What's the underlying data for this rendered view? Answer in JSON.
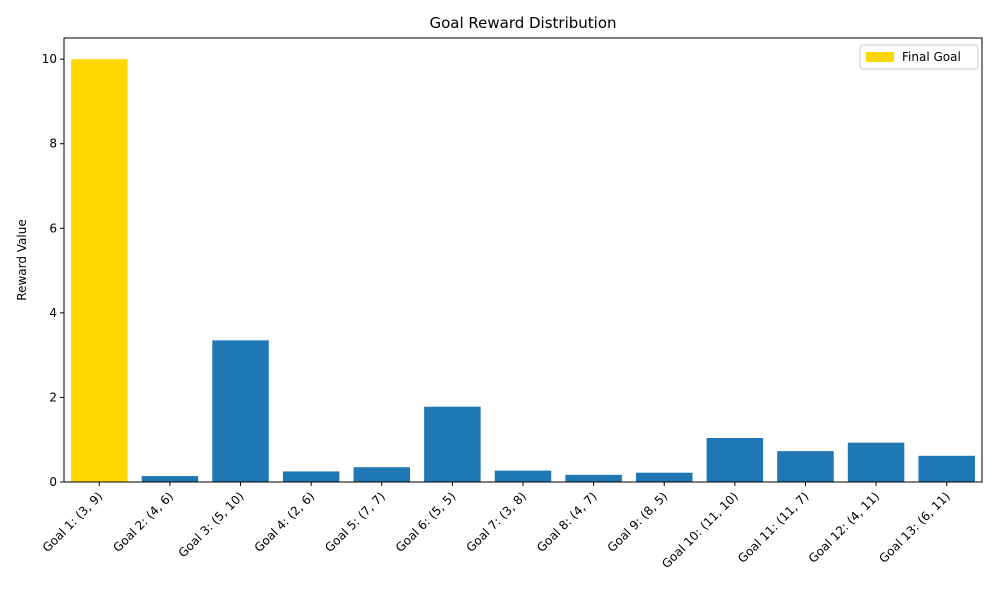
{
  "chart_data": {
    "type": "bar",
    "title": "Goal Reward Distribution",
    "xlabel": "",
    "ylabel": "Reward Value",
    "categories": [
      "Goal 1: (3, 9)",
      "Goal 2: (4, 6)",
      "Goal 3: (5, 10)",
      "Goal 4: (2, 6)",
      "Goal 5: (7, 7)",
      "Goal 6: (5, 5)",
      "Goal 7: (3, 8)",
      "Goal 8: (4, 7)",
      "Goal 9: (8, 5)",
      "Goal 10: (11, 10)",
      "Goal 11: (11, 7)",
      "Goal 12: (4, 11)",
      "Goal 13: (6, 11)"
    ],
    "values": [
      10.0,
      0.14,
      3.35,
      0.25,
      0.35,
      1.78,
      0.27,
      0.17,
      0.22,
      1.04,
      0.73,
      0.93,
      0.62
    ],
    "highlight_index": 0,
    "colors": {
      "default": "#1f77b4",
      "highlight": "#ffd700"
    },
    "ylim": [
      0,
      10.5
    ],
    "yticks": [
      0,
      2,
      4,
      6,
      8,
      10
    ],
    "grid": false,
    "legend": {
      "position": "top-right",
      "entries": [
        {
          "label": "Final Goal",
          "color": "#ffd700"
        }
      ]
    }
  }
}
